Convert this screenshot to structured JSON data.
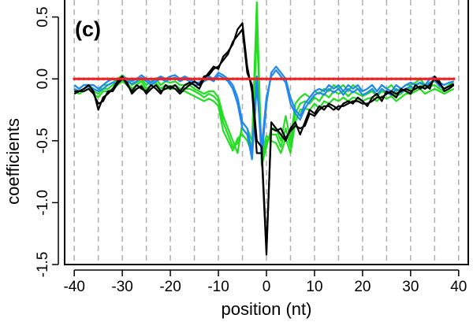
{
  "chart_data": {
    "type": "line",
    "panel_label": "(c)",
    "xlabel": "position (nt)",
    "ylabel": "coefficients",
    "xlim": [
      -42,
      42
    ],
    "ylim": [
      -1.5,
      0.65
    ],
    "xticks": [
      -40,
      -30,
      -20,
      -10,
      0,
      10,
      20,
      30,
      40
    ],
    "xtick_labels": [
      "-40",
      "-30",
      "-20",
      "-10",
      "0",
      "10",
      "20",
      "30",
      "40"
    ],
    "yticks": [
      0.5,
      0.0,
      -0.5,
      -1.0,
      -1.5
    ],
    "ytick_labels": [
      "0.5",
      "0.0",
      "-0.5",
      "-1.0",
      "-1.5"
    ],
    "vgrid": [
      -40,
      -35,
      -30,
      -25,
      -20,
      -15,
      -10,
      -5,
      0,
      5,
      10,
      15,
      20,
      25,
      30,
      35,
      40
    ],
    "grid_style": "dashed vertical",
    "colors": {
      "black": "#000000",
      "green": "#22dd22",
      "blue": "#2288ee",
      "red": "#ee2222"
    },
    "x": [
      -40,
      -39,
      -38,
      -37,
      -36,
      -35,
      -34,
      -33,
      -32,
      -31,
      -30,
      -29,
      -28,
      -27,
      -26,
      -25,
      -24,
      -23,
      -22,
      -21,
      -20,
      -19,
      -18,
      -17,
      -16,
      -15,
      -14,
      -13,
      -12,
      -11,
      -10,
      -9,
      -8,
      -7,
      -6,
      -5,
      -4,
      -3,
      -2,
      -1,
      0,
      1,
      2,
      3,
      4,
      5,
      6,
      7,
      8,
      9,
      10,
      11,
      12,
      13,
      14,
      15,
      16,
      17,
      18,
      19,
      20,
      21,
      22,
      23,
      24,
      25,
      26,
      27,
      28,
      29,
      30,
      31,
      32,
      33,
      34,
      35,
      36,
      37,
      38,
      39
    ],
    "series": [
      {
        "color": "black",
        "values": [
          -0.1,
          -0.1,
          -0.08,
          -0.05,
          -0.1,
          -0.25,
          -0.15,
          -0.12,
          -0.08,
          -0.02,
          0.02,
          -0.05,
          -0.1,
          -0.05,
          -0.08,
          -0.1,
          -0.05,
          -0.08,
          -0.12,
          -0.05,
          -0.08,
          -0.05,
          -0.1,
          -0.05,
          -0.03,
          -0.05,
          -0.08,
          0.0,
          0.05,
          0.1,
          0.08,
          0.18,
          0.22,
          0.28,
          0.4,
          0.45,
          0.1,
          -0.1,
          -0.6,
          -0.6,
          -1.42,
          -0.35,
          -0.4,
          -0.45,
          -0.5,
          -0.4,
          -0.35,
          -0.45,
          -0.35,
          -0.25,
          -0.28,
          -0.22,
          -0.25,
          -0.2,
          -0.22,
          -0.25,
          -0.2,
          -0.18,
          -0.2,
          -0.15,
          -0.18,
          -0.22,
          -0.15,
          -0.12,
          -0.18,
          -0.1,
          -0.12,
          -0.15,
          -0.08,
          -0.1,
          -0.12,
          -0.05,
          -0.08,
          -0.05,
          -0.08,
          0.02,
          -0.02,
          -0.1,
          -0.08,
          -0.05
        ]
      },
      {
        "color": "black",
        "values": [
          -0.12,
          -0.1,
          -0.1,
          -0.08,
          -0.12,
          -0.2,
          -0.18,
          -0.1,
          -0.1,
          -0.04,
          0.0,
          -0.03,
          -0.12,
          -0.08,
          -0.06,
          -0.12,
          -0.08,
          -0.05,
          -0.1,
          -0.08,
          -0.06,
          -0.08,
          -0.12,
          -0.08,
          -0.05,
          -0.02,
          -0.05,
          0.02,
          0.03,
          0.08,
          0.1,
          0.15,
          0.2,
          0.3,
          0.35,
          0.4,
          0.05,
          -0.05,
          -0.5,
          -0.55,
          -1.38,
          -0.4,
          -0.42,
          -0.4,
          -0.48,
          -0.42,
          -0.38,
          -0.4,
          -0.38,
          -0.28,
          -0.3,
          -0.25,
          -0.22,
          -0.22,
          -0.25,
          -0.22,
          -0.22,
          -0.2,
          -0.18,
          -0.18,
          -0.2,
          -0.2,
          -0.18,
          -0.15,
          -0.15,
          -0.12,
          -0.1,
          -0.12,
          -0.1,
          -0.08,
          -0.1,
          -0.08,
          -0.06,
          -0.08,
          -0.05,
          0.0,
          -0.04,
          -0.08,
          -0.06,
          -0.04
        ]
      },
      {
        "color": "green",
        "values": [
          -0.05,
          -0.08,
          -0.05,
          -0.05,
          -0.08,
          -0.1,
          -0.05,
          -0.05,
          -0.03,
          0.0,
          0.03,
          0.0,
          -0.05,
          -0.03,
          0.0,
          -0.05,
          -0.02,
          0.0,
          -0.05,
          -0.02,
          -0.03,
          -0.02,
          -0.05,
          -0.05,
          -0.05,
          -0.08,
          -0.1,
          -0.12,
          -0.1,
          -0.1,
          -0.15,
          -0.3,
          -0.4,
          -0.5,
          -0.6,
          -0.35,
          -0.4,
          -0.5,
          0.62,
          -0.7,
          -0.55,
          -0.4,
          -0.4,
          -0.5,
          -0.3,
          -0.5,
          -0.2,
          -0.15,
          -0.12,
          -0.15,
          -0.1,
          -0.12,
          -0.08,
          -0.1,
          -0.05,
          -0.08,
          -0.05,
          -0.1,
          -0.05,
          -0.08,
          -0.1,
          -0.08,
          -0.05,
          -0.1,
          -0.05,
          -0.08,
          -0.05,
          -0.1,
          -0.08,
          -0.05,
          -0.05,
          -0.03,
          0.0,
          -0.05,
          -0.03,
          -0.02,
          -0.05,
          -0.08,
          -0.05,
          -0.02
        ]
      },
      {
        "color": "green",
        "values": [
          -0.08,
          -0.1,
          -0.08,
          -0.06,
          -0.1,
          -0.12,
          -0.08,
          -0.08,
          -0.05,
          -0.02,
          0.0,
          -0.03,
          -0.08,
          -0.05,
          -0.02,
          -0.08,
          -0.05,
          -0.03,
          -0.08,
          -0.05,
          -0.06,
          -0.05,
          -0.08,
          -0.08,
          -0.08,
          -0.1,
          -0.12,
          -0.15,
          -0.12,
          -0.14,
          -0.18,
          -0.35,
          -0.45,
          -0.55,
          -0.52,
          -0.4,
          -0.45,
          -0.55,
          0.5,
          -0.65,
          -0.5,
          -0.45,
          -0.45,
          -0.55,
          -0.4,
          -0.55,
          -0.28,
          -0.2,
          -0.18,
          -0.2,
          -0.15,
          -0.18,
          -0.12,
          -0.15,
          -0.1,
          -0.12,
          -0.1,
          -0.14,
          -0.1,
          -0.12,
          -0.14,
          -0.12,
          -0.1,
          -0.14,
          -0.1,
          -0.12,
          -0.1,
          -0.14,
          -0.12,
          -0.08,
          -0.08,
          -0.06,
          -0.03,
          -0.08,
          -0.06,
          -0.05,
          -0.08,
          -0.1,
          -0.08,
          -0.05
        ]
      },
      {
        "color": "green",
        "values": [
          -0.1,
          -0.12,
          -0.1,
          -0.08,
          -0.12,
          -0.15,
          -0.1,
          -0.1,
          -0.08,
          -0.05,
          -0.02,
          -0.05,
          -0.1,
          -0.08,
          -0.05,
          -0.1,
          -0.08,
          -0.05,
          -0.1,
          -0.08,
          -0.08,
          -0.08,
          -0.1,
          -0.1,
          -0.12,
          -0.14,
          -0.16,
          -0.18,
          -0.16,
          -0.18,
          -0.22,
          -0.42,
          -0.5,
          -0.58,
          -0.48,
          -0.45,
          -0.5,
          -0.6,
          0.4,
          -0.6,
          -0.46,
          -0.5,
          -0.52,
          -0.6,
          -0.48,
          -0.6,
          -0.35,
          -0.25,
          -0.24,
          -0.25,
          -0.2,
          -0.24,
          -0.18,
          -0.2,
          -0.16,
          -0.18,
          -0.15,
          -0.18,
          -0.15,
          -0.16,
          -0.18,
          -0.16,
          -0.15,
          -0.18,
          -0.14,
          -0.16,
          -0.14,
          -0.18,
          -0.15,
          -0.12,
          -0.12,
          -0.1,
          -0.08,
          -0.12,
          -0.1,
          -0.08,
          -0.1,
          -0.12,
          -0.1,
          -0.08
        ]
      },
      {
        "color": "blue",
        "values": [
          -0.05,
          -0.08,
          -0.05,
          -0.05,
          -0.05,
          -0.08,
          -0.05,
          -0.02,
          0.0,
          -0.02,
          0.02,
          0.0,
          -0.02,
          0.0,
          0.03,
          0.0,
          -0.03,
          0.0,
          0.02,
          0.0,
          0.02,
          0.03,
          0.0,
          0.02,
          0.0,
          -0.03,
          -0.03,
          0.0,
          0.02,
          0.0,
          0.05,
          0.03,
          0.0,
          -0.05,
          -0.15,
          -0.35,
          -0.4,
          -0.6,
          0.02,
          -0.65,
          -0.2,
          0.05,
          0.1,
          0.05,
          0.0,
          -0.15,
          -0.25,
          -0.3,
          -0.2,
          -0.15,
          -0.1,
          -0.08,
          -0.1,
          -0.05,
          -0.08,
          -0.05,
          -0.1,
          -0.05,
          -0.08,
          -0.05,
          -0.1,
          -0.08,
          -0.05,
          -0.1,
          -0.05,
          -0.08,
          -0.1,
          -0.05,
          -0.08,
          -0.05,
          -0.03,
          -0.05,
          -0.03,
          -0.05,
          0.0,
          0.02,
          -0.03,
          -0.05,
          -0.03,
          -0.02
        ]
      },
      {
        "color": "blue",
        "values": [
          -0.08,
          -0.1,
          -0.08,
          -0.06,
          -0.08,
          -0.1,
          -0.08,
          -0.05,
          -0.03,
          -0.04,
          0.0,
          -0.02,
          -0.04,
          -0.02,
          0.01,
          -0.02,
          -0.05,
          -0.02,
          0.0,
          -0.02,
          0.0,
          0.01,
          -0.02,
          0.0,
          -0.02,
          -0.05,
          -0.05,
          -0.02,
          0.0,
          -0.02,
          0.03,
          0.01,
          -0.02,
          -0.08,
          -0.2,
          -0.4,
          -0.45,
          -0.65,
          -0.05,
          -0.55,
          -0.15,
          0.02,
          0.07,
          0.02,
          -0.03,
          -0.2,
          -0.28,
          -0.33,
          -0.24,
          -0.18,
          -0.13,
          -0.11,
          -0.13,
          -0.08,
          -0.11,
          -0.08,
          -0.13,
          -0.08,
          -0.11,
          -0.08,
          -0.13,
          -0.11,
          -0.08,
          -0.13,
          -0.08,
          -0.11,
          -0.13,
          -0.08,
          -0.11,
          -0.08,
          -0.06,
          -0.08,
          -0.06,
          -0.08,
          -0.03,
          -0.01,
          -0.06,
          -0.08,
          -0.06,
          -0.05
        ]
      },
      {
        "color": "red",
        "values": [
          0,
          0,
          0,
          0,
          0,
          0,
          0,
          0,
          0,
          0,
          0,
          0,
          0,
          0,
          0,
          0,
          0,
          0,
          0,
          0,
          0,
          0,
          0,
          0,
          0,
          0,
          0,
          0,
          0,
          0,
          0,
          0,
          0,
          0,
          0,
          0,
          0,
          0,
          0,
          0,
          0,
          0,
          0,
          0,
          0,
          0,
          0,
          0,
          0,
          0,
          0,
          0,
          0,
          0,
          0,
          0,
          0,
          0,
          0,
          0,
          0,
          0,
          0,
          0,
          0,
          0,
          0,
          0,
          0,
          0,
          0,
          0,
          0,
          0,
          0,
          0,
          0,
          0,
          0,
          0
        ]
      }
    ]
  }
}
